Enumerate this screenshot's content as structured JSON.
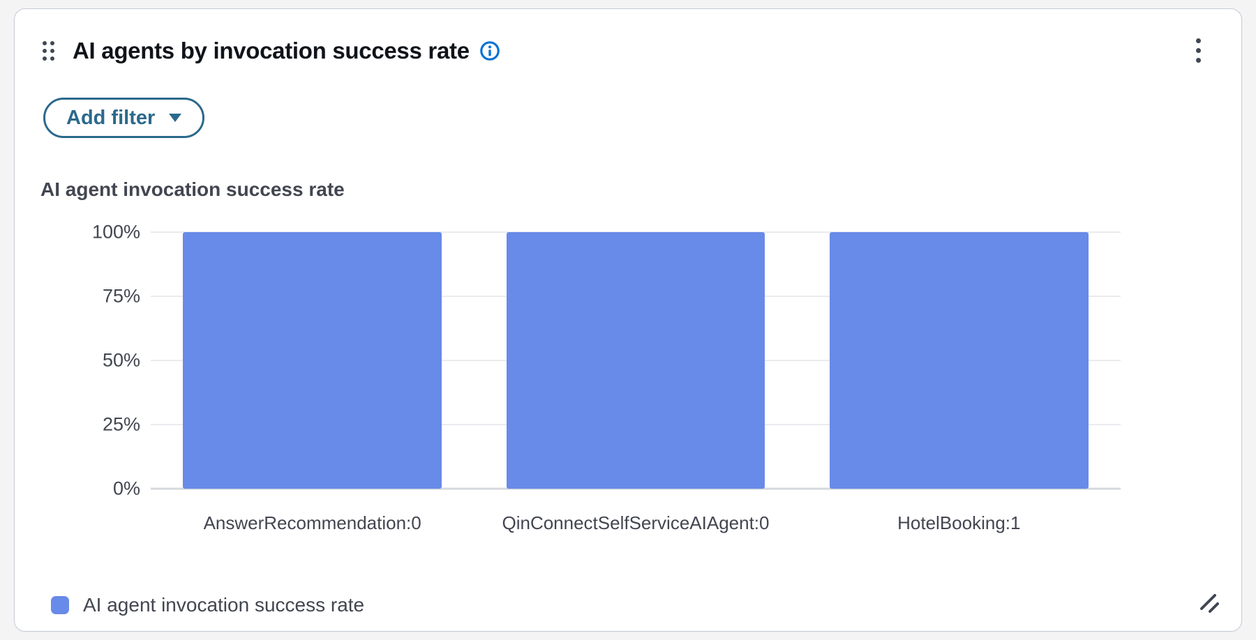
{
  "widget": {
    "title": "AI agents by invocation success rate",
    "icons": {
      "drag_handle": "six-dot drag grip",
      "info": "info circle",
      "more_options": "vertical kebab dots",
      "resize": "diagonal resize grip",
      "caret": "filled caret down"
    }
  },
  "toolbar": {
    "add_filter_label": "Add filter"
  },
  "chart_data": {
    "type": "bar",
    "title": "AI agent invocation success rate",
    "categories": [
      "AnswerRecommendation:0",
      "QinConnectSelfServiceAIAgent:0",
      "HotelBooking:1"
    ],
    "series": [
      {
        "name": "AI agent invocation success rate",
        "values": [
          100,
          100,
          100
        ]
      }
    ],
    "value_unit": "%",
    "xlabel": "",
    "ylabel": "",
    "ylim": [
      0,
      100
    ],
    "yticks": [
      {
        "value": 100,
        "label": "100%"
      },
      {
        "value": 75,
        "label": "75%"
      },
      {
        "value": 50,
        "label": "50%"
      },
      {
        "value": 25,
        "label": "25%"
      },
      {
        "value": 0,
        "label": "0%"
      }
    ],
    "grid": true,
    "legend_position": "bottom-left",
    "bar_color": "#688AE8"
  },
  "legend": {
    "items": [
      {
        "label": "AI agent invocation success rate",
        "color": "#688AE8"
      }
    ]
  },
  "colors": {
    "accent_teal": "#2B698C",
    "info_blue": "#0972D3",
    "bar_fill": "#688AE8",
    "text_dark": "#0F141A",
    "text_slate": "#424650",
    "gridline": "#E9EBEE",
    "card_border": "#C6CBD3",
    "page_background": "#F4F4F5"
  }
}
